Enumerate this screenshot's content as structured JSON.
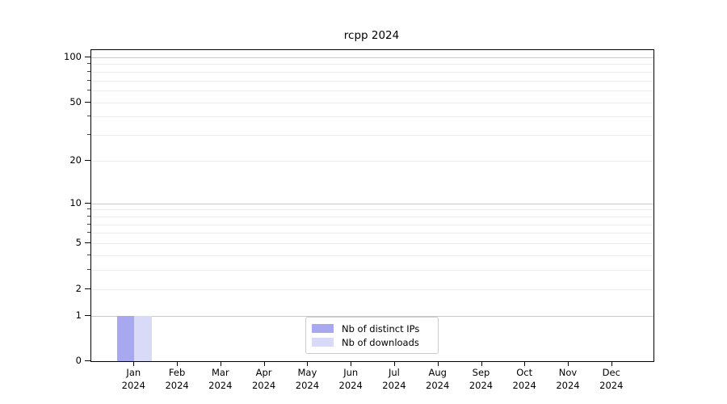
{
  "title": "rcpp 2024",
  "chart_data": {
    "type": "bar",
    "scale": "log1p",
    "title": "rcpp 2024",
    "xlabel": "",
    "ylabel": "",
    "year": "2024",
    "categories": [
      "Jan",
      "Feb",
      "Mar",
      "Apr",
      "May",
      "Jun",
      "Jul",
      "Aug",
      "Sep",
      "Oct",
      "Nov",
      "Dec"
    ],
    "series": [
      {
        "name": "Nb of distinct IPs",
        "color": "#a8a8f0",
        "values": [
          1,
          0,
          0,
          0,
          0,
          0,
          0,
          0,
          0,
          0,
          0,
          0
        ]
      },
      {
        "name": "Nb of downloads",
        "color": "#d9d9f8",
        "values": [
          1,
          0,
          0,
          0,
          0,
          0,
          0,
          0,
          0,
          0,
          0,
          0
        ]
      }
    ],
    "y_ticks": [
      0,
      1,
      2,
      5,
      10,
      20,
      50,
      100
    ],
    "y_major_gridlines": [
      1,
      10,
      100
    ],
    "y_minor_gridlines": [
      2,
      3,
      4,
      5,
      6,
      7,
      8,
      9,
      20,
      30,
      40,
      50,
      60,
      70,
      80,
      90
    ],
    "y_minor_ticks": [
      3,
      4,
      6,
      7,
      8,
      9,
      30,
      40,
      60,
      70,
      80,
      90
    ],
    "ylim": [
      0,
      110
    ],
    "grid": true,
    "legend_position": "bottom-center",
    "colors": {
      "spine": "#000000",
      "grid_major": "#c8c8c8",
      "grid_minor": "#ececec",
      "text": "#000000"
    }
  }
}
